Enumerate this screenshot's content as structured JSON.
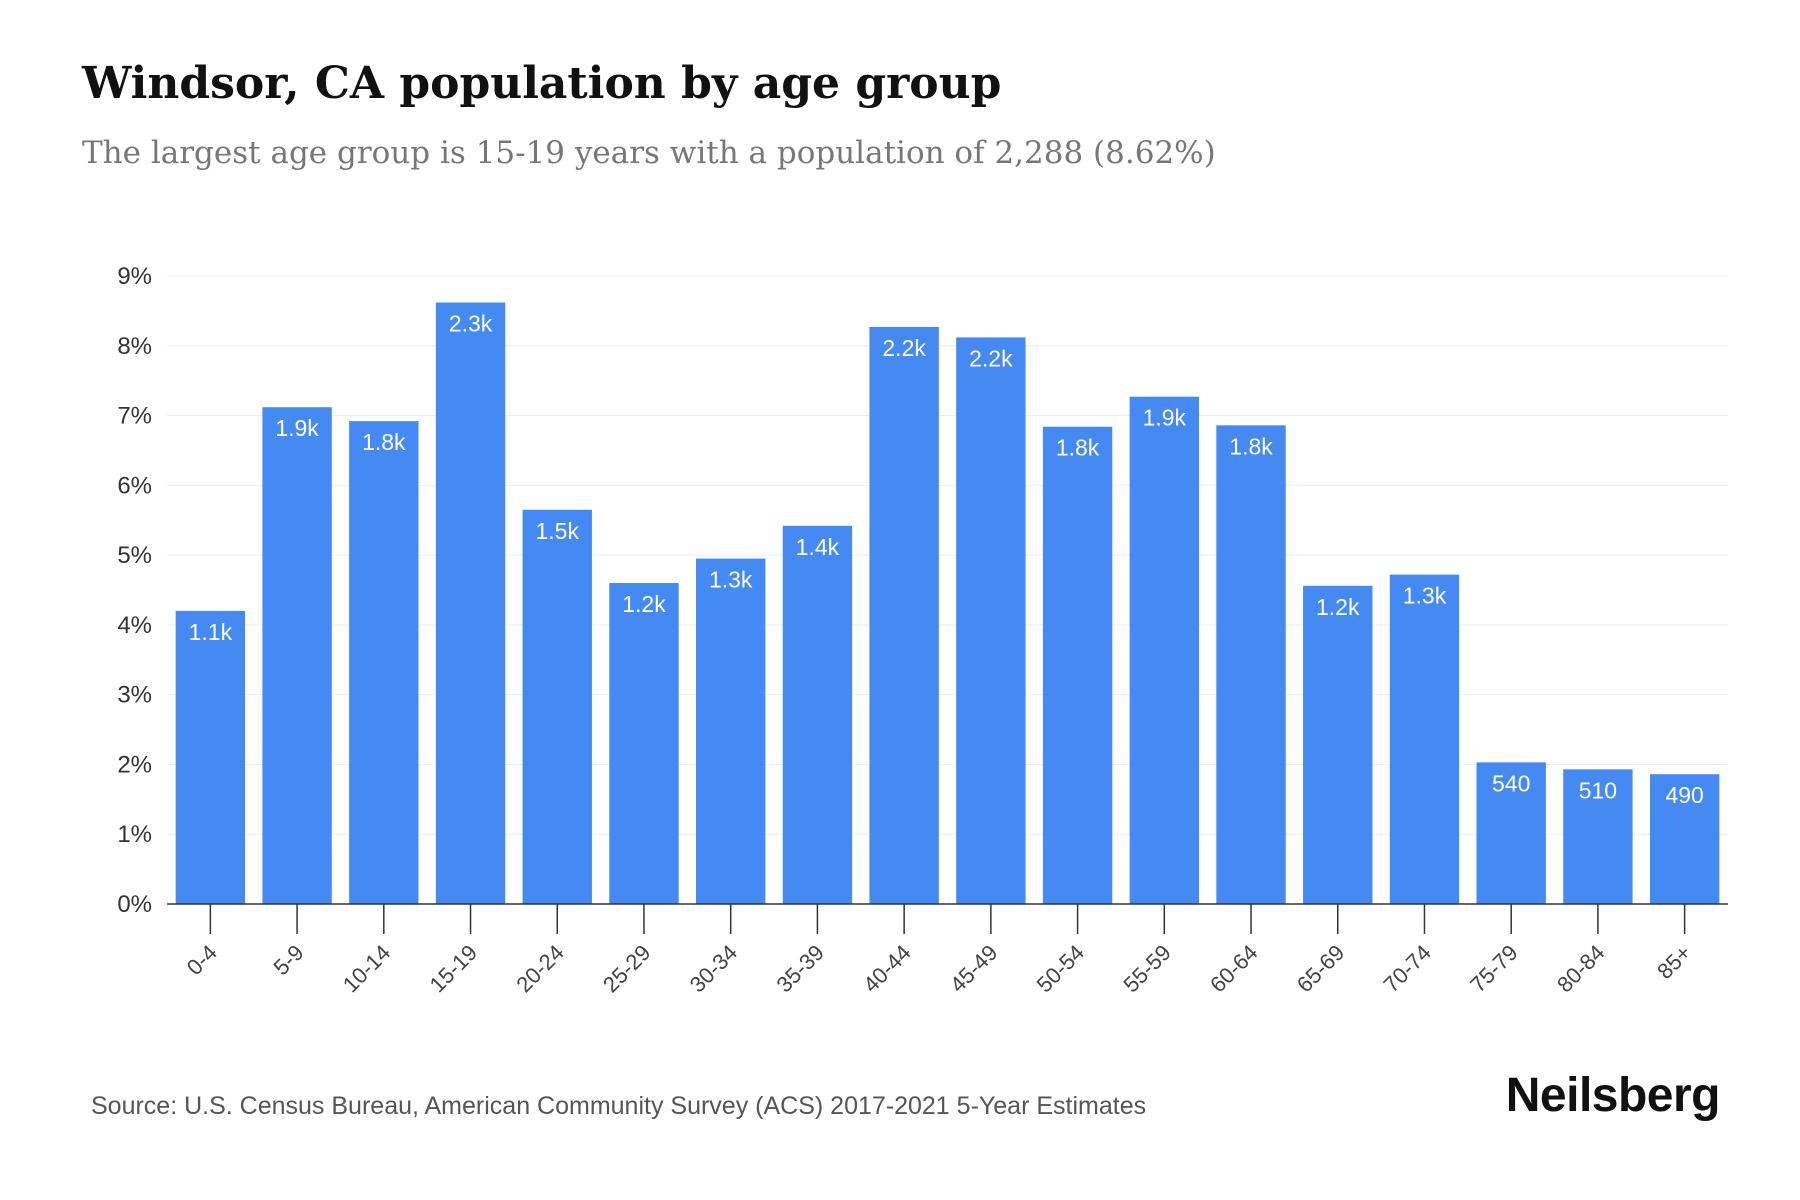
{
  "title": "Windsor, CA population by age group",
  "subtitle": "The largest age group is 15-19 years with a population of 2,288 (8.62%)",
  "source": "Source: U.S. Census Bureau, American Community Survey (ACS) 2017-2021 5-Year Estimates",
  "brand": "Neilsberg",
  "colors": {
    "bar": "#4589f2",
    "grid": "#eeeeee",
    "axis": "#333333"
  },
  "chart_data": {
    "type": "bar",
    "categories": [
      "0-4",
      "5-9",
      "10-14",
      "15-19",
      "20-24",
      "25-29",
      "30-34",
      "35-39",
      "40-44",
      "45-49",
      "50-54",
      "55-59",
      "60-64",
      "65-69",
      "70-74",
      "75-79",
      "80-84",
      "85+"
    ],
    "values": [
      4.2,
      7.12,
      6.92,
      8.62,
      5.65,
      4.6,
      4.95,
      5.42,
      8.27,
      8.12,
      6.84,
      7.27,
      6.86,
      4.56,
      4.72,
      2.03,
      1.93,
      1.86
    ],
    "data_labels": [
      "1.1k",
      "1.9k",
      "1.8k",
      "2.3k",
      "1.5k",
      "1.2k",
      "1.3k",
      "1.4k",
      "2.2k",
      "2.2k",
      "1.8k",
      "1.9k",
      "1.8k",
      "1.2k",
      "1.3k",
      "540",
      "510",
      "490"
    ],
    "y_ticks": [
      "0%",
      "1%",
      "2%",
      "3%",
      "4%",
      "5%",
      "6%",
      "7%",
      "8%",
      "9%"
    ],
    "ylim": [
      0,
      9
    ],
    "xlabel": "",
    "ylabel": "",
    "grid": true,
    "legend": "none"
  }
}
